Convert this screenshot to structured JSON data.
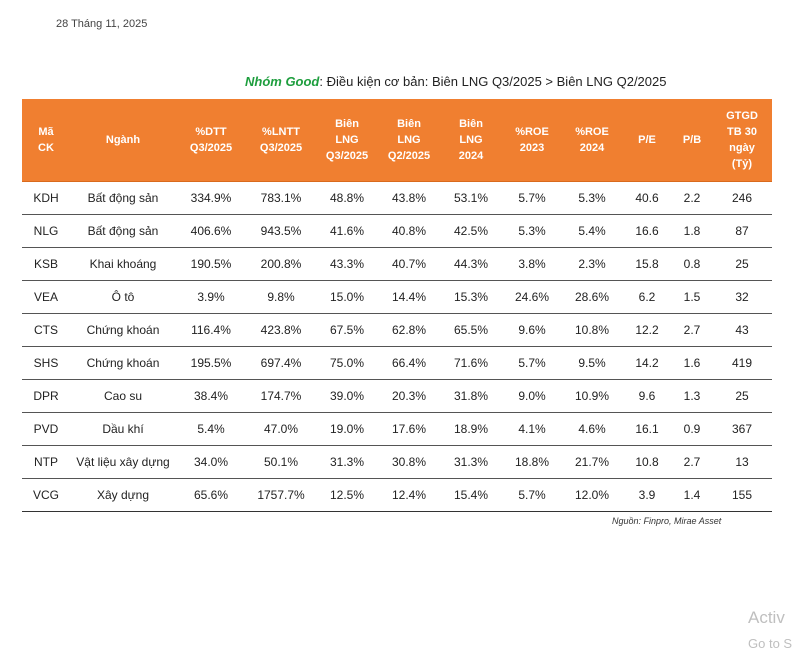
{
  "date": "28 Tháng 11, 2025",
  "caption": {
    "group": "Nhóm Good",
    "text": ": Điều kiện cơ bản: Biên LNG Q3/2025  > Biên LNG Q2/2025"
  },
  "table": {
    "headers": [
      [
        "Mã",
        "CK"
      ],
      [
        "Ngành"
      ],
      [
        "%DTT",
        "Q3/2025"
      ],
      [
        "%LNTT",
        "Q3/2025"
      ],
      [
        "Biên",
        "LNG",
        "Q3/2025"
      ],
      [
        "Biên",
        "LNG",
        "Q2/2025"
      ],
      [
        "Biên",
        "LNG",
        "2024"
      ],
      [
        "%ROE",
        "2023"
      ],
      [
        "%ROE",
        "2024"
      ],
      [
        "P/E"
      ],
      [
        "P/B"
      ],
      [
        "GTGD",
        "TB 30",
        "ngày",
        "(Tỷ)"
      ]
    ],
    "rows": [
      [
        "KDH",
        "Bất động sản",
        "334.9%",
        "783.1%",
        "48.8%",
        "43.8%",
        "53.1%",
        "5.7%",
        "5.3%",
        "40.6",
        "2.2",
        "246"
      ],
      [
        "NLG",
        "Bất động sản",
        "406.6%",
        "943.5%",
        "41.6%",
        "40.8%",
        "42.5%",
        "5.3%",
        "5.4%",
        "16.6",
        "1.8",
        "87"
      ],
      [
        "KSB",
        "Khai khoáng",
        "190.5%",
        "200.8%",
        "43.3%",
        "40.7%",
        "44.3%",
        "3.8%",
        "2.3%",
        "15.8",
        "0.8",
        "25"
      ],
      [
        "VEA",
        "Ô tô",
        "3.9%",
        "9.8%",
        "15.0%",
        "14.4%",
        "15.3%",
        "24.6%",
        "28.6%",
        "6.2",
        "1.5",
        "32"
      ],
      [
        "CTS",
        "Chứng khoán",
        "116.4%",
        "423.8%",
        "67.5%",
        "62.8%",
        "65.5%",
        "9.6%",
        "10.8%",
        "12.2",
        "2.7",
        "43"
      ],
      [
        "SHS",
        "Chứng khoán",
        "195.5%",
        "697.4%",
        "75.0%",
        "66.4%",
        "71.6%",
        "5.7%",
        "9.5%",
        "14.2",
        "1.6",
        "419"
      ],
      [
        "DPR",
        "Cao su",
        "38.4%",
        "174.7%",
        "39.0%",
        "20.3%",
        "31.8%",
        "9.0%",
        "10.9%",
        "9.6",
        "1.3",
        "25"
      ],
      [
        "PVD",
        "Dầu khí",
        "5.4%",
        "47.0%",
        "19.0%",
        "17.6%",
        "18.9%",
        "4.1%",
        "4.6%",
        "16.1",
        "0.9",
        "367"
      ],
      [
        "NTP",
        "Vật liệu xây dựng",
        "34.0%",
        "50.1%",
        "31.3%",
        "30.8%",
        "31.3%",
        "18.8%",
        "21.7%",
        "10.8",
        "2.7",
        "13"
      ],
      [
        "VCG",
        "Xây dựng",
        "65.6%",
        "1757.7%",
        "12.5%",
        "12.4%",
        "15.4%",
        "5.7%",
        "12.0%",
        "3.9",
        "1.4",
        "155"
      ]
    ]
  },
  "source": "Nguồn: Finpro, Mirae Asset",
  "watermark": {
    "line1": "Activ",
    "line2": "Go to S"
  }
}
